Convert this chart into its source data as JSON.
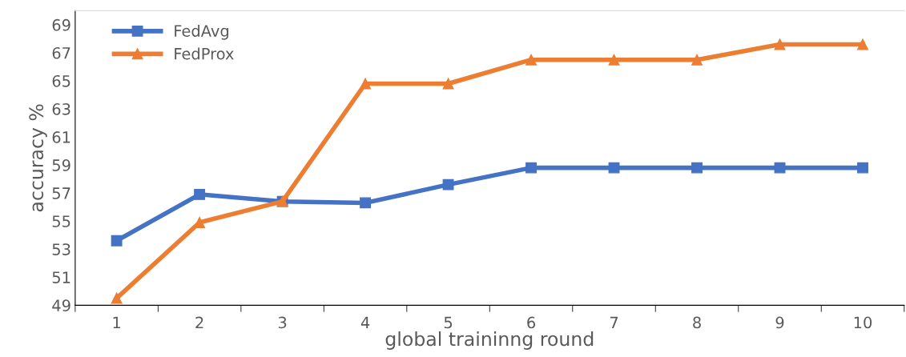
{
  "chart_data": {
    "type": "line",
    "xlabel": "global traininng round",
    "ylabel": "accuracy %",
    "categories": [
      "1",
      "2",
      "3",
      "4",
      "5",
      "6",
      "7",
      "8",
      "9",
      "10"
    ],
    "series": [
      {
        "name": "FedAvg",
        "color": "#4472c4",
        "marker": "square",
        "values": [
          53.6,
          56.9,
          56.4,
          56.3,
          57.6,
          58.8,
          58.8,
          58.8,
          58.8,
          58.8
        ]
      },
      {
        "name": "FedProx",
        "color": "#ed7d31",
        "marker": "triangle",
        "values": [
          49.5,
          54.9,
          56.4,
          64.8,
          64.8,
          66.5,
          66.5,
          66.5,
          67.6,
          67.6
        ]
      }
    ],
    "ylim": [
      49,
      70
    ],
    "yticks": [
      49,
      51,
      53,
      55,
      57,
      59,
      61,
      63,
      65,
      67,
      69
    ],
    "grid": false,
    "legend": "top left",
    "line_style": "solid"
  }
}
